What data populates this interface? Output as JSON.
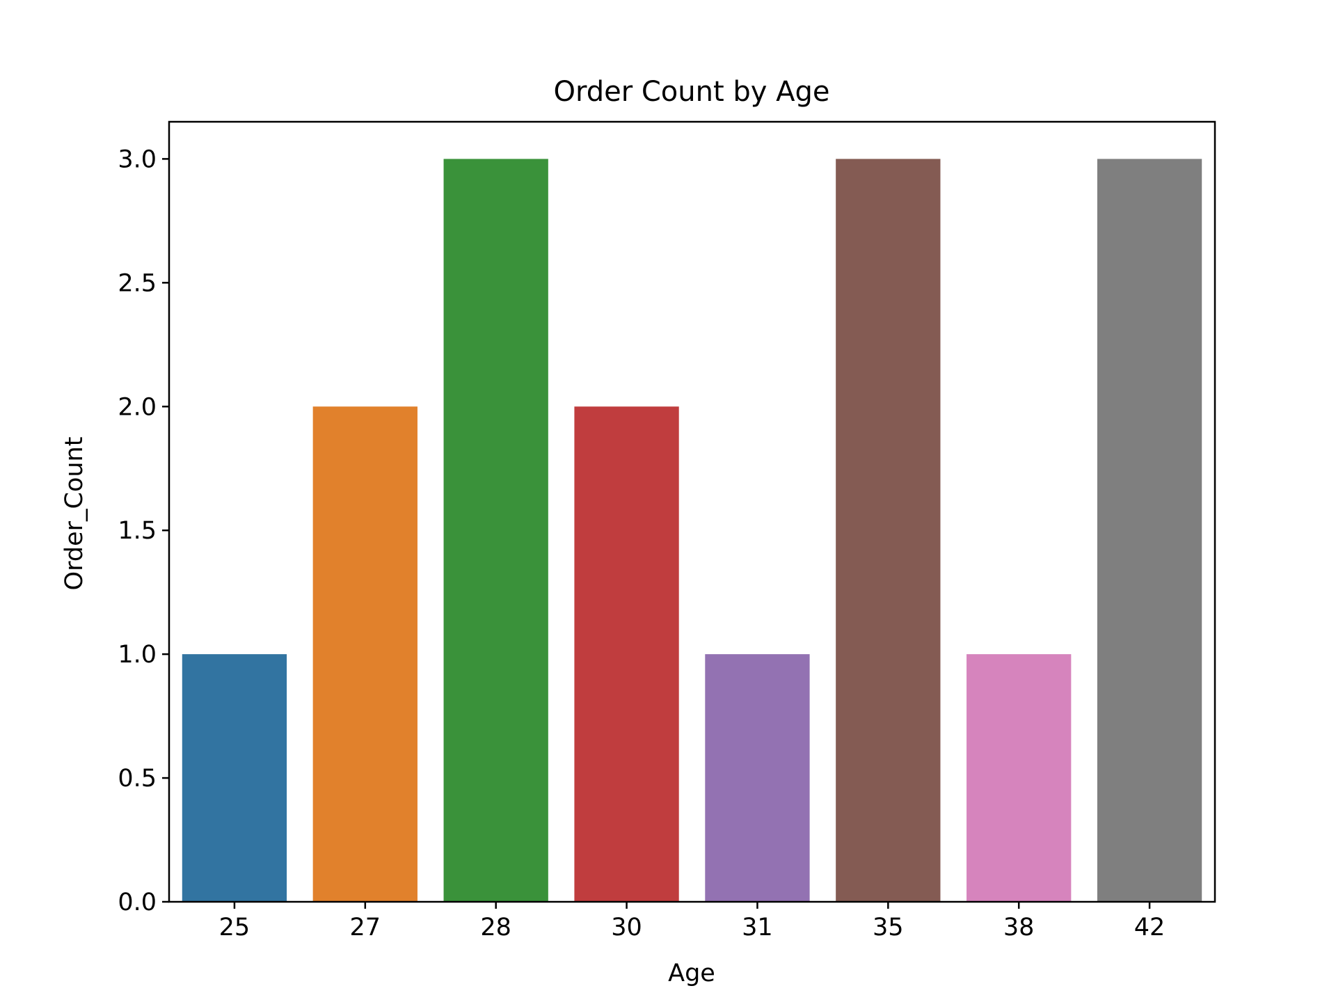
{
  "chart_data": {
    "type": "bar",
    "title": "Order Count by Age",
    "xlabel": "Age",
    "ylabel": "Order_Count",
    "categories": [
      "25",
      "27",
      "28",
      "30",
      "31",
      "35",
      "38",
      "42"
    ],
    "values": [
      1,
      2,
      3,
      2,
      1,
      3,
      1,
      3
    ],
    "colors": [
      "#3274a1",
      "#e1812c",
      "#3a923a",
      "#c03d3e",
      "#9372b2",
      "#845b53",
      "#d684bd",
      "#7f7f7f"
    ],
    "ylim": [
      0,
      3.15
    ],
    "yticks": [
      0.0,
      0.5,
      1.0,
      1.5,
      2.0,
      2.5,
      3.0
    ],
    "ytick_labels": [
      "0.0",
      "0.5",
      "1.0",
      "1.5",
      "2.0",
      "2.5",
      "3.0"
    ],
    "grid": false,
    "legend": "none"
  }
}
